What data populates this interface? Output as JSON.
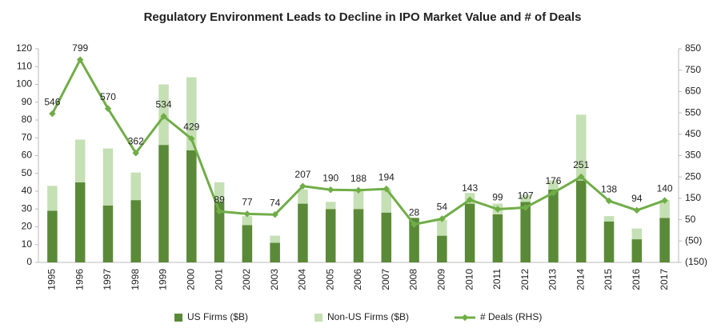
{
  "chart_data": {
    "type": "bar",
    "stacked": true,
    "title": "Regulatory Environment Leads to Decline in IPO Market Value and # of Deals",
    "categories": [
      "1995",
      "1996",
      "1997",
      "1998",
      "1999",
      "2000",
      "2001",
      "2002",
      "2003",
      "2004",
      "2005",
      "2006",
      "2007",
      "2008",
      "2009",
      "2010",
      "2011",
      "2012",
      "2013",
      "2014",
      "2015",
      "2016",
      "2017"
    ],
    "series": [
      {
        "name": "US Firms ($B)",
        "type": "bar",
        "color": "#5a8a38",
        "values": [
          29,
          45,
          32,
          35,
          66,
          63,
          34,
          21,
          11,
          33,
          30,
          30,
          28,
          25,
          15,
          33,
          27,
          34,
          41,
          46,
          23,
          13,
          25
        ]
      },
      {
        "name": "Non-US Firms ($B)",
        "type": "bar",
        "color": "#c5e0b4",
        "values": [
          14,
          24,
          32,
          15.5,
          34,
          41,
          11,
          5,
          4,
          8,
          4,
          10,
          13,
          0,
          9,
          6,
          6,
          4,
          5,
          37,
          3,
          6,
          10
        ]
      },
      {
        "name": "# Deals (RHS)",
        "type": "line",
        "axis": "y2",
        "color": "#70ad47",
        "values": [
          546,
          799,
          570,
          362,
          534,
          429,
          89,
          77,
          74,
          207,
          190,
          188,
          194,
          28,
          54,
          143,
          99,
          107,
          176,
          251,
          138,
          94,
          140
        ]
      }
    ],
    "ylim": [
      0,
      120
    ],
    "yticks": [
      0,
      10,
      20,
      30,
      40,
      50,
      60,
      70,
      80,
      90,
      100,
      110,
      120
    ],
    "y2lim": [
      -150,
      850
    ],
    "y2ticks": [
      {
        "value": -150,
        "label": "(150)"
      },
      {
        "value": -50,
        "label": "(50)"
      },
      50,
      150,
      250,
      350,
      450,
      550,
      650,
      750,
      850
    ],
    "data_labels": true
  }
}
